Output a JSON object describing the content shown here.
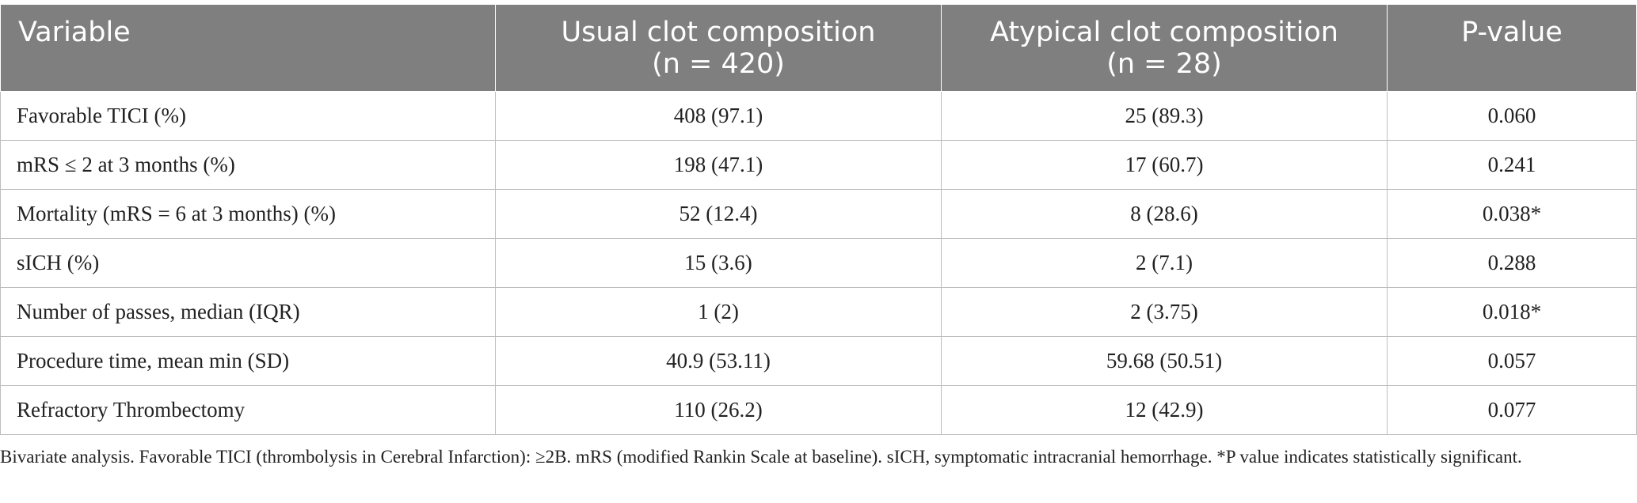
{
  "table": {
    "headers": [
      {
        "label": "Variable",
        "n": ""
      },
      {
        "label": "Usual clot composition",
        "n": "(n = 420)"
      },
      {
        "label": "Atypical clot composition",
        "n": "(n = 28)"
      },
      {
        "label": "P-value",
        "n": ""
      }
    ],
    "rows": [
      [
        "Favorable TICI (%)",
        "408 (97.1)",
        "25 (89.3)",
        "0.060"
      ],
      [
        "mRS ≤ 2 at 3 months (%)",
        "198 (47.1)",
        "17 (60.7)",
        "0.241"
      ],
      [
        "Mortality (mRS = 6 at 3 months) (%)",
        "52 (12.4)",
        "8 (28.6)",
        "0.038*"
      ],
      [
        "sICH (%)",
        "15 (3.6)",
        "2 (7.1)",
        "0.288"
      ],
      [
        "Number of passes, median (IQR)",
        "1 (2)",
        "2 (3.75)",
        "0.018*"
      ],
      [
        "Procedure time, mean min (SD)",
        "40.9 (53.11)",
        "59.68 (50.51)",
        "0.057"
      ],
      [
        "Refractory Thrombectomy",
        "110 (26.2)",
        "12 (42.9)",
        "0.077"
      ]
    ]
  },
  "footnote": "Bivariate analysis. Favorable TICI (thrombolysis in Cerebral Infarction): ≥2B. mRS (modified Rankin Scale at baseline). sICH, symptomatic intracranial hemorrhage. *P value indicates statistically significant.",
  "colors": {
    "header_bg": "#7f7f7f",
    "header_text": "#ffffff",
    "grid": "#bdbdbd"
  }
}
